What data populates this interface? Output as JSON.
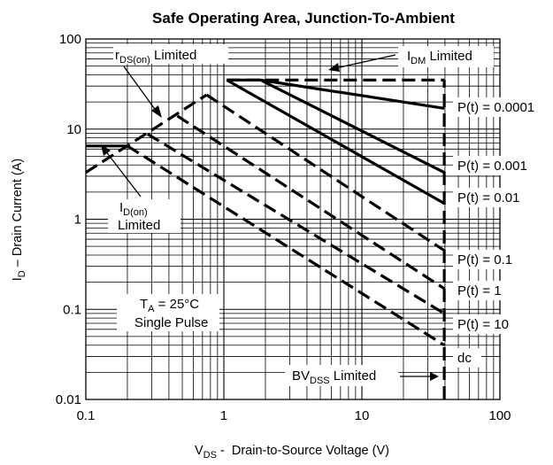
{
  "chart_data": {
    "type": "line",
    "title": "Safe Operating Area, Junction-To-Ambient",
    "xlabel": {
      "v": "V",
      "sub": "DS",
      "rest": " -  Drain-to-Source Voltage (V)"
    },
    "ylabel": {
      "v": "I",
      "sub": "D",
      "rest": " – Drain Current (A)"
    },
    "xscale": "log",
    "yscale": "log",
    "xlim": [
      0.1,
      100
    ],
    "ylim": [
      0.01,
      100
    ],
    "grid": true,
    "x_ticks": [
      {
        "value": 0.1,
        "label": "0.1"
      },
      {
        "value": 1,
        "label": "1"
      },
      {
        "value": 10,
        "label": "10"
      },
      {
        "value": 100,
        "label": "100"
      }
    ],
    "y_ticks": [
      {
        "value": 0.01,
        "label": "0.01"
      },
      {
        "value": 0.1,
        "label": "0.1"
      },
      {
        "value": 1,
        "label": "1"
      },
      {
        "value": 10,
        "label": "10"
      },
      {
        "value": 100,
        "label": "100"
      }
    ],
    "limits": [
      {
        "name": "I_DM",
        "style": "dashed",
        "x": [
          1.05,
          39.5
        ],
        "y": [
          35,
          35
        ]
      },
      {
        "name": "BV_DSS",
        "style": "dashed",
        "x": [
          39.5,
          39.5
        ],
        "y": [
          0.01,
          35
        ]
      },
      {
        "name": "I_D(on)",
        "style": "solid",
        "x": [
          0.1,
          0.2
        ],
        "y": [
          6.5,
          6.5
        ]
      }
    ],
    "series": [
      {
        "name": "P(t) = 0.0001",
        "style": "solid",
        "x": [
          1.05,
          1.85,
          39.5
        ],
        "y": [
          35,
          35,
          17
        ]
      },
      {
        "name": "P(t) = 0.001",
        "style": "solid",
        "x": [
          1.85,
          39.5
        ],
        "y": [
          35,
          3.3
        ]
      },
      {
        "name": "P(t) = 0.01",
        "style": "solid",
        "x": [
          1.05,
          39.5
        ],
        "y": [
          35,
          1.5
        ]
      },
      {
        "name": "P(t) = 0.1",
        "style": "dashed",
        "x": [
          0.75,
          39.5
        ],
        "y": [
          24,
          0.45
        ]
      },
      {
        "name": "P(t) = 1",
        "style": "dashed",
        "x": [
          0.46,
          39.5
        ],
        "y": [
          14,
          0.17
        ]
      },
      {
        "name": "P(t) = 10",
        "style": "dashed",
        "x": [
          0.28,
          39.5
        ],
        "y": [
          8.8,
          0.09
        ]
      },
      {
        "name": "dc",
        "style": "dashed",
        "x": [
          0.2,
          39.5
        ],
        "y": [
          6.5,
          0.04
        ]
      },
      {
        "name": "r_DS(on)",
        "style": "dashed",
        "x": [
          0.1,
          0.75
        ],
        "y": [
          3.3,
          24
        ]
      }
    ],
    "annotations": {
      "rds": {
        "a": "r",
        "sub": "DS(on)",
        "b": " Limited"
      },
      "idm": {
        "a": "I",
        "sub": "DM",
        "b": " Limited"
      },
      "idon1": {
        "a": "I",
        "sub": "D(on)"
      },
      "idon2": "Limited",
      "ta1": {
        "a": "T",
        "sub": "A",
        "b": " = 25°C"
      },
      "ta2": "Single Pulse",
      "bv": {
        "a": "BV",
        "sub": "DSS",
        "b": " Limited"
      },
      "series_labels": [
        "P(t) = 0.0001",
        "P(t) = 0.001",
        "P(t) = 0.01",
        "P(t) = 0.1",
        "P(t) = 1",
        "P(t) = 10",
        "dc"
      ]
    }
  }
}
